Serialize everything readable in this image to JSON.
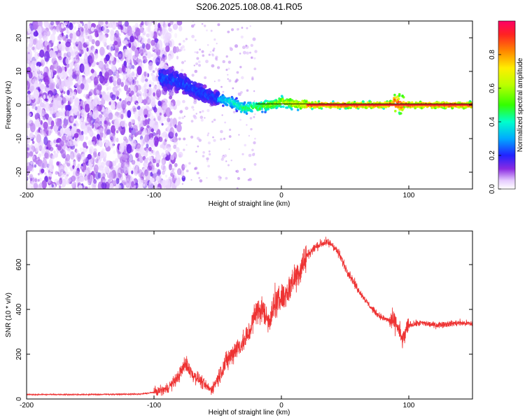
{
  "title": "S206.2025.108.08.41.R05",
  "chart_data": [
    {
      "type": "heatmap",
      "xlabel": "Height of straight line (km)",
      "ylabel": "Frequency (Hz)",
      "xlim": [
        -200,
        150
      ],
      "ylim": [
        -25,
        25
      ],
      "x_ticks": [
        -200,
        -100,
        0,
        100
      ],
      "y_ticks": [
        -20,
        -10,
        0,
        10,
        20
      ],
      "colorbar": {
        "label": "Normalized spectral amplitude",
        "range": [
          0,
          1
        ],
        "ticks": [
          "0.0",
          "0.2",
          "0.4",
          "0.6",
          "0.8"
        ]
      },
      "ridge": {
        "x": [
          -90,
          -80,
          -70,
          -60,
          -50,
          -40,
          -30,
          -20,
          -10,
          0,
          10,
          20,
          40,
          60,
          80,
          90,
          100,
          120,
          150
        ],
        "freq": [
          8,
          7,
          5,
          3,
          2,
          1,
          -1,
          -0.5,
          0,
          1,
          0.5,
          0,
          0,
          0,
          0,
          0.5,
          0,
          0,
          0
        ]
      }
    },
    {
      "type": "line",
      "xlabel": "Height of straight line (km)",
      "ylabel": "SNR (10 * v/v)",
      "xlim": [
        -200,
        150
      ],
      "ylim": [
        0,
        750
      ],
      "x_ticks": [
        -200,
        -100,
        0,
        100
      ],
      "y_ticks": [
        0,
        200,
        400,
        600
      ],
      "series": [
        {
          "color": "#ee3333",
          "x": [
            -200,
            -150,
            -110,
            -100,
            -90,
            -82,
            -75,
            -70,
            -65,
            -60,
            -55,
            -50,
            -45,
            -40,
            -35,
            -30,
            -25,
            -20,
            -15,
            -10,
            -5,
            0,
            5,
            10,
            15,
            20,
            25,
            30,
            35,
            40,
            45,
            50,
            55,
            60,
            65,
            70,
            75,
            80,
            85,
            90,
            95,
            100,
            110,
            120,
            130,
            140,
            150
          ],
          "y": [
            20,
            20,
            22,
            30,
            45,
            90,
            160,
            110,
            90,
            60,
            40,
            90,
            150,
            190,
            230,
            250,
            300,
            390,
            400,
            350,
            420,
            450,
            480,
            540,
            580,
            640,
            670,
            690,
            700,
            690,
            650,
            590,
            540,
            490,
            450,
            410,
            380,
            360,
            350,
            340,
            260,
            330,
            340,
            330,
            335,
            340,
            335
          ]
        }
      ]
    }
  ]
}
